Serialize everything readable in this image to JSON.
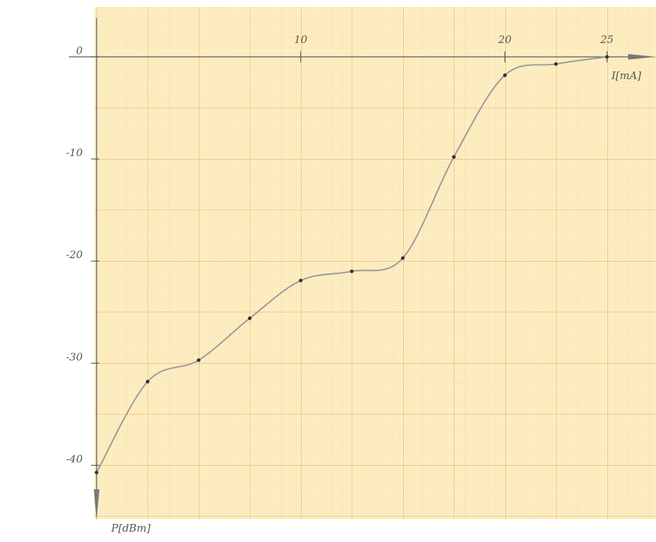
{
  "chart_data": {
    "type": "line",
    "xlabel": "I[mA]",
    "ylabel": "P[dBm]",
    "x": [
      0,
      2.5,
      5,
      7.5,
      10,
      12.5,
      15,
      17.5,
      20,
      22.5,
      25
    ],
    "values": [
      -40.7,
      -31.8,
      -29.7,
      -25.6,
      -21.9,
      -21.0,
      -19.7,
      -9.8,
      -1.8,
      -0.7,
      0
    ],
    "color": "#9a9a9a",
    "marker_color": "#333333",
    "xlim": [
      0,
      27.4
    ],
    "ylim": [
      -45.4,
      3.8
    ],
    "xticks": [
      10,
      20,
      25
    ],
    "yticks": [
      0,
      -10,
      -20,
      -30,
      -40
    ],
    "grid": true
  }
}
